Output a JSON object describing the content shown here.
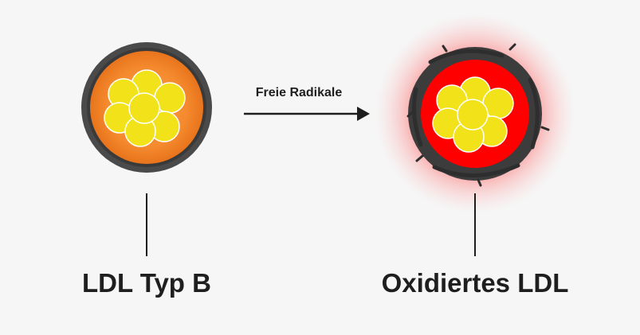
{
  "labels": {
    "left": "LDL Typ B",
    "right": "Oxidiertes LDL",
    "arrow": "Freie Radikale"
  },
  "colors": {
    "background": "#f6f6f6",
    "shell": "#4a4a4a",
    "ldl_core": "#f58a2e",
    "oxidized_core": "#ff0000",
    "glow": "#ff6a6a",
    "lipid": "#f2e21a",
    "text": "#1e1e1e"
  }
}
